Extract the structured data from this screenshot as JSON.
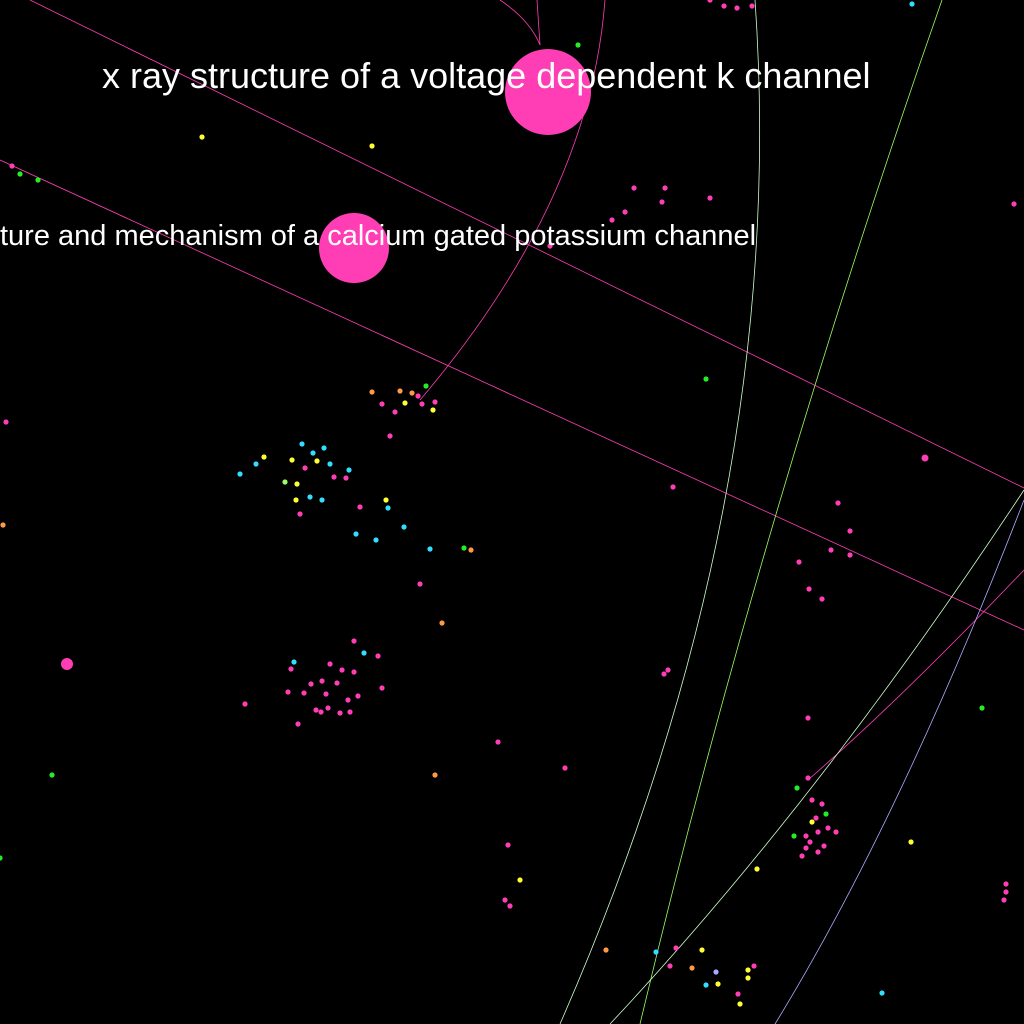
{
  "graph": {
    "background_color": "#000000",
    "label_color": "#ffffff",
    "labels": [
      {
        "id": "label-voltage",
        "text": "x ray structure of a voltage dependent k channel"
      },
      {
        "id": "label-calcium",
        "text": "ture and mechanism of a calcium gated potassium channel"
      }
    ],
    "colors": {
      "pink": "#ff3eb5",
      "green": "#22ee22",
      "yellow": "#ffff33",
      "cyan": "#33ddff",
      "orange": "#ff9944",
      "lavender": "#aaaaff",
      "lime": "#99ff66",
      "pale_green": "#ccffcc"
    }
  }
}
